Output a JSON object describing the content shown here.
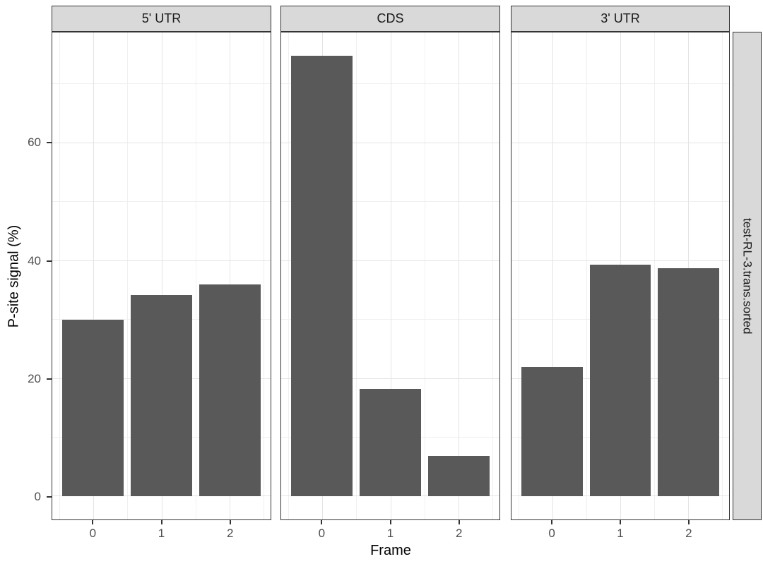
{
  "figure": {
    "x_title": "Frame",
    "y_title": "P-site signal (%)",
    "right_strip_label": "test-RL-3.trans.sorted",
    "colors": {
      "bar": "#595959",
      "strip_bg": "#D9D9D9",
      "strip_border": "#333333",
      "panel_border": "#333333",
      "grid_major": "#E4E4E4",
      "grid_minor": "#F0F0F0",
      "tick_label": "#4D4D4D",
      "axis_title": "#000000"
    }
  },
  "chart_data": {
    "type": "bar",
    "title": "",
    "xlabel": "Frame",
    "ylabel": "P-site signal (%)",
    "facet_row_label": "test-RL-3.trans.sorted",
    "categories": [
      0,
      1,
      2
    ],
    "facets": [
      {
        "label": "5' UTR",
        "values": [
          30.0,
          34.2,
          36.0
        ]
      },
      {
        "label": "CDS",
        "values": [
          74.9,
          18.3,
          6.9
        ]
      },
      {
        "label": "3' UTR",
        "values": [
          22.0,
          39.4,
          38.8
        ]
      }
    ],
    "y_ticks": [
      0,
      20,
      40,
      60
    ],
    "y_minor": [
      10,
      30,
      50,
      70
    ],
    "x_minor": [
      -0.5,
      0.5,
      1.5,
      2.5
    ],
    "ylim": [
      -3.9,
      78.8
    ],
    "xlim": [
      -0.6,
      2.6
    ],
    "bar_width": 0.9,
    "grid": "major+minor",
    "legend": "none"
  }
}
